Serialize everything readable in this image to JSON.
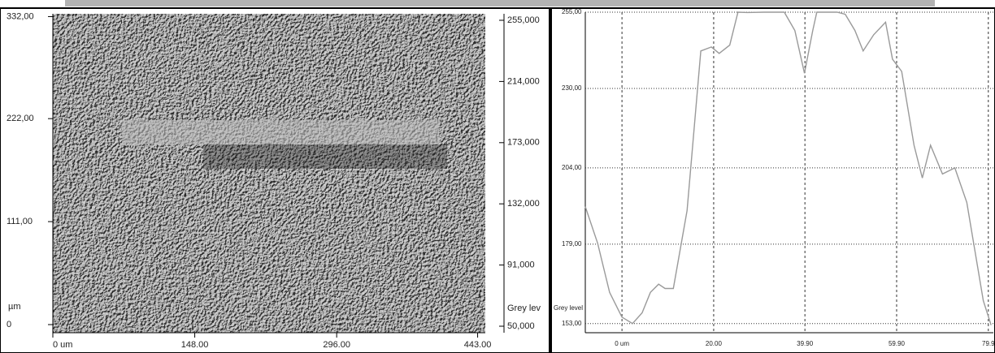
{
  "chart_data": [
    {
      "type": "image",
      "ylabel": "µm",
      "xlim": [
        0,
        451
      ],
      "ylim": [
        0,
        335
      ],
      "xticks": [
        {
          "value": 0,
          "label": "0 um"
        },
        {
          "value": 148,
          "label": "148.00"
        },
        {
          "value": 296,
          "label": "296.00"
        },
        {
          "value": 443,
          "label": "443.00"
        }
      ],
      "yticks": [
        0,
        {
          "value": 111,
          "label": "111,00"
        },
        {
          "value": 222,
          "label": "222,00"
        },
        {
          "value": 332,
          "label": "332,00"
        }
      ],
      "colorbar_label": "Grey lev",
      "colorbar_lim": [
        50,
        255
      ],
      "colorbar_ticks": [
        {
          "value": 50,
          "label": "50,000"
        },
        {
          "value": 91,
          "label": "91,000"
        },
        {
          "value": 132,
          "label": "132,000"
        },
        {
          "value": 173,
          "label": "173,000"
        },
        {
          "value": 214,
          "label": "214,000"
        },
        {
          "value": 255,
          "label": "255,000"
        }
      ]
    },
    {
      "type": "line",
      "ylabel": "Grey level",
      "color": "#9a9a9a",
      "grid": true,
      "xlim": [
        -8,
        81
      ],
      "ylim": [
        150,
        255
      ],
      "xticks": [
        {
          "value": 0,
          "label": "0 um"
        },
        {
          "value": 20,
          "label": "20.00"
        },
        {
          "value": 39.9,
          "label": "39.90"
        },
        {
          "value": 59.9,
          "label": "59.90"
        },
        {
          "value": 79.9,
          "label": "79.9"
        }
      ],
      "yticks": [
        {
          "value": 153,
          "label": "153,00"
        },
        {
          "value": 179,
          "label": "179,00"
        },
        {
          "value": 204,
          "label": "204,00"
        },
        {
          "value": 230,
          "label": "230,00"
        },
        {
          "value": 255,
          "label": "255,00"
        }
      ],
      "x": [
        -8,
        -5.3,
        -2.7,
        0,
        2.3,
        4.4,
        6.2,
        8,
        9.4,
        11.2,
        14.2,
        17.2,
        19.5,
        21.2,
        23.5,
        25.3,
        27.4,
        31,
        35.4,
        37.7,
        39.8,
        41.6,
        42.5,
        46.9,
        48.7,
        50.8,
        52.6,
        54.9,
        57.5,
        59,
        61,
        63.7,
        65.5,
        67.3,
        69.9,
        72.6,
        75.2,
        78.8,
        80.5
      ],
      "values": [
        191.3,
        179.3,
        163.2,
        155.1,
        153,
        156.5,
        163.2,
        165.9,
        164.5,
        164.5,
        190,
        242.3,
        243.6,
        241.5,
        244.2,
        255,
        254.9,
        255,
        255,
        249,
        235,
        249,
        255,
        255,
        254.3,
        249,
        242.3,
        247.6,
        251.7,
        239.6,
        235.6,
        211.4,
        200.7,
        211.4,
        202,
        204,
        192.7,
        160.5,
        152.5
      ]
    }
  ]
}
